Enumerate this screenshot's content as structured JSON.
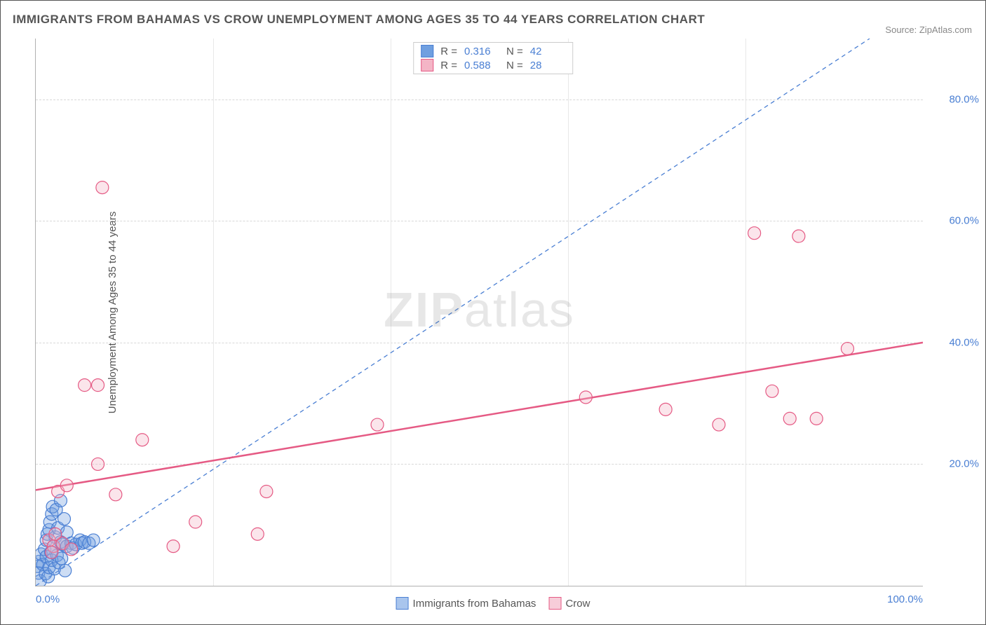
{
  "title": "IMMIGRANTS FROM BAHAMAS VS CROW UNEMPLOYMENT AMONG AGES 35 TO 44 YEARS CORRELATION CHART",
  "source_label": "Source:",
  "source_value": "ZipAtlas.com",
  "y_axis_label": "Unemployment Among Ages 35 to 44 years",
  "watermark": {
    "bold": "ZIP",
    "rest": "atlas"
  },
  "chart": {
    "type": "scatter",
    "background_color": "#ffffff",
    "grid_color": "#d8d8d8",
    "axis_color": "#b0b0b0",
    "text_color": "#555555",
    "tick_label_color": "#4a7fd3",
    "xlim": [
      0,
      100
    ],
    "ylim": [
      0,
      90
    ],
    "x_ticks_labels": [
      {
        "pos": 0,
        "label": "0.0%",
        "align": "left"
      },
      {
        "pos": 100,
        "label": "100.0%",
        "align": "right"
      }
    ],
    "x_ticks_minor": [
      20,
      40,
      60,
      80
    ],
    "y_ticks": [
      {
        "pos": 20,
        "label": "20.0%"
      },
      {
        "pos": 40,
        "label": "40.0%"
      },
      {
        "pos": 60,
        "label": "60.0%"
      },
      {
        "pos": 80,
        "label": "80.0%"
      }
    ],
    "marker_radius": 9,
    "marker_opacity": 0.35,
    "series": [
      {
        "name": "Immigrants from Bahamas",
        "fill_color": "#6f9fe0",
        "stroke_color": "#4a7fd3",
        "legend_R": "0.316",
        "legend_N": "42",
        "trendline": {
          "x1": 0,
          "y1": 0,
          "x2": 94,
          "y2": 90,
          "color": "#4a7fd3",
          "dash": "6,5",
          "width": 1.3
        },
        "points": [
          {
            "x": 0.2,
            "y": 3.2
          },
          {
            "x": 0.3,
            "y": 2.1
          },
          {
            "x": 0.4,
            "y": 4.0
          },
          {
            "x": 0.5,
            "y": 0.8
          },
          {
            "x": 0.6,
            "y": 5.2
          },
          {
            "x": 0.8,
            "y": 3.5
          },
          {
            "x": 1.0,
            "y": 6.0
          },
          {
            "x": 1.1,
            "y": 2.0
          },
          {
            "x": 1.2,
            "y": 7.5
          },
          {
            "x": 1.2,
            "y": 4.8
          },
          {
            "x": 1.3,
            "y": 8.5
          },
          {
            "x": 1.4,
            "y": 1.5
          },
          {
            "x": 1.5,
            "y": 9.2
          },
          {
            "x": 1.5,
            "y": 3.0
          },
          {
            "x": 1.6,
            "y": 10.5
          },
          {
            "x": 1.7,
            "y": 5.5
          },
          {
            "x": 1.8,
            "y": 11.8
          },
          {
            "x": 1.8,
            "y": 4.2
          },
          {
            "x": 1.9,
            "y": 13.0
          },
          {
            "x": 2.0,
            "y": 6.5
          },
          {
            "x": 2.1,
            "y": 2.8
          },
          {
            "x": 2.2,
            "y": 8.0
          },
          {
            "x": 2.3,
            "y": 12.5
          },
          {
            "x": 2.4,
            "y": 5.0
          },
          {
            "x": 2.5,
            "y": 9.5
          },
          {
            "x": 2.6,
            "y": 3.8
          },
          {
            "x": 2.8,
            "y": 7.2
          },
          {
            "x": 2.8,
            "y": 14.0
          },
          {
            "x": 2.9,
            "y": 4.5
          },
          {
            "x": 3.0,
            "y": 6.8
          },
          {
            "x": 3.2,
            "y": 11.0
          },
          {
            "x": 3.3,
            "y": 2.5
          },
          {
            "x": 3.5,
            "y": 8.8
          },
          {
            "x": 3.5,
            "y": 6.5
          },
          {
            "x": 4.0,
            "y": 7.0
          },
          {
            "x": 4.2,
            "y": 6.2
          },
          {
            "x": 4.5,
            "y": 6.8
          },
          {
            "x": 5.0,
            "y": 7.5
          },
          {
            "x": 5.2,
            "y": 7.0
          },
          {
            "x": 5.5,
            "y": 7.2
          },
          {
            "x": 6.0,
            "y": 7.0
          },
          {
            "x": 6.5,
            "y": 7.5
          }
        ]
      },
      {
        "name": "Crow",
        "fill_color": "#f4b5c6",
        "stroke_color": "#e55a84",
        "legend_R": "0.588",
        "legend_N": "28",
        "trendline": {
          "x1": -1,
          "y1": 15.5,
          "x2": 100,
          "y2": 40,
          "color": "#e55a84",
          "dash": "none",
          "width": 2.5
        },
        "points": [
          {
            "x": 1.5,
            "y": 7.5
          },
          {
            "x": 2.0,
            "y": 6.5
          },
          {
            "x": 2.5,
            "y": 15.5
          },
          {
            "x": 3.0,
            "y": 7.0
          },
          {
            "x": 3.5,
            "y": 16.5
          },
          {
            "x": 4.0,
            "y": 6.0
          },
          {
            "x": 5.5,
            "y": 33.0
          },
          {
            "x": 7.0,
            "y": 33.0
          },
          {
            "x": 7.0,
            "y": 20.0
          },
          {
            "x": 7.5,
            "y": 65.5
          },
          {
            "x": 9.0,
            "y": 15.0
          },
          {
            "x": 12.0,
            "y": 24.0
          },
          {
            "x": 15.5,
            "y": 6.5
          },
          {
            "x": 18.0,
            "y": 10.5
          },
          {
            "x": 25.0,
            "y": 8.5
          },
          {
            "x": 26.0,
            "y": 15.5
          },
          {
            "x": 38.5,
            "y": 26.5
          },
          {
            "x": 62.0,
            "y": 31.0
          },
          {
            "x": 71.0,
            "y": 29.0
          },
          {
            "x": 77.0,
            "y": 26.5
          },
          {
            "x": 81.0,
            "y": 58.0
          },
          {
            "x": 83.0,
            "y": 32.0
          },
          {
            "x": 85.0,
            "y": 27.5
          },
          {
            "x": 86.0,
            "y": 57.5
          },
          {
            "x": 88.0,
            "y": 27.5
          },
          {
            "x": 91.5,
            "y": 39.0
          },
          {
            "x": 1.8,
            "y": 5.5
          },
          {
            "x": 2.2,
            "y": 8.5
          }
        ]
      }
    ],
    "legend_top_labels": {
      "R": "R  =",
      "N": "N  ="
    },
    "legend_bottom_items": [
      {
        "label": "Immigrants from Bahamas",
        "fill": "#a9c5ed",
        "stroke": "#4a7fd3"
      },
      {
        "label": "Crow",
        "fill": "#f7cdd9",
        "stroke": "#e55a84"
      }
    ]
  }
}
